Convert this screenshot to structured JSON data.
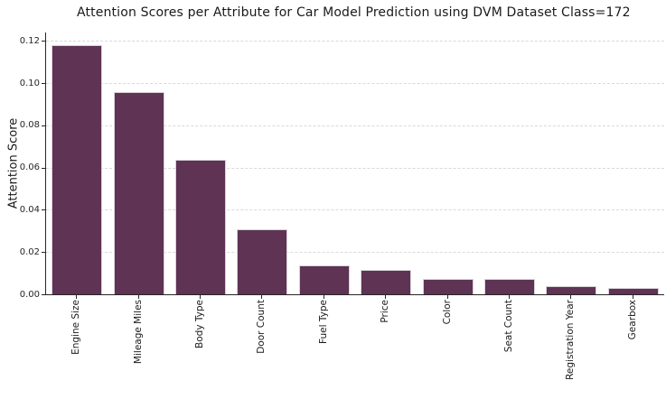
{
  "chart_data": {
    "type": "bar",
    "title": "Attention Scores per Attribute for Car Model Prediction using DVM Dataset Class=172",
    "xlabel": "",
    "ylabel": "Attention Score",
    "categories": [
      "Engine Size",
      "Mileage Miles",
      "Body Type",
      "Door Count",
      "Fuel Type",
      "Price",
      "Color",
      "Seat Count",
      "Registration Year",
      "Gearbox"
    ],
    "values": [
      0.1181,
      0.0956,
      0.0638,
      0.0308,
      0.0135,
      0.0117,
      0.0074,
      0.0072,
      0.004,
      0.003
    ],
    "yticks": [
      0.0,
      0.02,
      0.04,
      0.06,
      0.08,
      0.1,
      0.12
    ],
    "ytick_labels": [
      "0.00",
      "0.02",
      "0.04",
      "0.06",
      "0.08",
      "0.10",
      "0.12"
    ],
    "ylim": [
      0,
      0.124
    ],
    "grid": "horizontal-dashed",
    "legend": "none",
    "colors": {
      "bar_fill": "#5e3354",
      "bar_edge": "#d9d2d8",
      "gridline": "#d9d9d9",
      "spine": "#262626",
      "text": "#1a1a1a",
      "background": "#ffffff"
    }
  }
}
